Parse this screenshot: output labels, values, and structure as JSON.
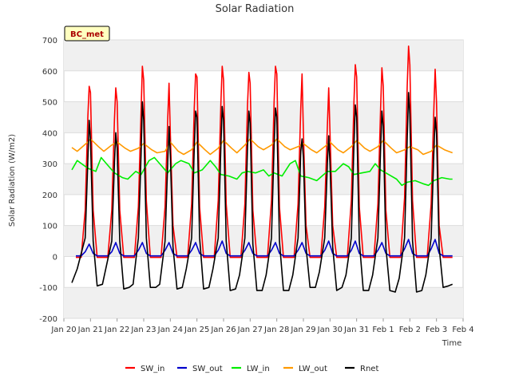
{
  "chart_data": {
    "type": "line",
    "title": "Solar Radiation",
    "xlabel": "Time",
    "ylabel": "Solar Radiation (W/m2)",
    "station_label": "BC_met",
    "ylim": [
      -200,
      700
    ],
    "xlim": [
      0,
      15
    ],
    "y_ticks": [
      -200,
      -100,
      0,
      100,
      200,
      300,
      400,
      500,
      600,
      700
    ],
    "x_ticks": [
      {
        "x": 0,
        "label": "Jan 20"
      },
      {
        "x": 1,
        "label": "Jan 21"
      },
      {
        "x": 2,
        "label": "Jan 22"
      },
      {
        "x": 3,
        "label": "Jan 23"
      },
      {
        "x": 4,
        "label": "Jan 24"
      },
      {
        "x": 5,
        "label": "Jan 25"
      },
      {
        "x": 6,
        "label": "Jan 26"
      },
      {
        "x": 7,
        "label": "Jan 27"
      },
      {
        "x": 8,
        "label": "Jan 28"
      },
      {
        "x": 9,
        "label": "Jan 29"
      },
      {
        "x": 10,
        "label": "Jan 30"
      },
      {
        "x": 11,
        "label": "Jan 31"
      },
      {
        "x": 12,
        "label": "Feb 1"
      },
      {
        "x": 13,
        "label": "Feb 2"
      },
      {
        "x": 14,
        "label": "Feb 3"
      },
      {
        "x": 15,
        "label": "Feb 4"
      }
    ],
    "x_unit": "days since Jan 20 00:00",
    "grid": true,
    "legend_position": "bottom",
    "series": [
      {
        "name": "SW_in",
        "color": "#ff0000",
        "x": [
          0.45,
          0.65,
          0.8,
          0.9,
          0.95,
          1.0,
          1.1,
          1.25,
          1.45,
          1.65,
          1.8,
          1.9,
          1.95,
          2.0,
          2.1,
          2.25,
          2.45,
          2.65,
          2.8,
          2.9,
          2.95,
          3.0,
          3.1,
          3.25,
          3.45,
          3.65,
          3.8,
          3.9,
          3.95,
          4.0,
          4.1,
          4.25,
          4.45,
          4.65,
          4.8,
          4.9,
          4.95,
          5.0,
          5.1,
          5.25,
          5.45,
          5.65,
          5.8,
          5.9,
          5.95,
          6.0,
          6.1,
          6.25,
          6.45,
          6.65,
          6.8,
          6.9,
          6.95,
          7.0,
          7.1,
          7.25,
          7.45,
          7.65,
          7.8,
          7.9,
          7.95,
          8.0,
          8.1,
          8.25,
          8.45,
          8.65,
          8.8,
          8.9,
          8.95,
          9.0,
          9.1,
          9.25,
          9.45,
          9.65,
          9.8,
          9.9,
          9.95,
          10.0,
          10.1,
          10.25,
          10.45,
          10.65,
          10.8,
          10.9,
          10.95,
          11.0,
          11.1,
          11.25,
          11.45,
          11.65,
          11.8,
          11.9,
          11.95,
          12.0,
          12.1,
          12.25,
          12.45,
          12.65,
          12.8,
          12.9,
          12.95,
          13.0,
          13.1,
          13.25,
          13.45,
          13.65,
          13.8,
          13.9,
          13.95,
          14.0,
          14.1,
          14.25,
          14.45,
          14.6
        ],
        "y": [
          -3,
          -3,
          150,
          450,
          550,
          530,
          150,
          -3,
          -3,
          -3,
          150,
          440,
          545,
          500,
          150,
          -3,
          -3,
          -3,
          160,
          470,
          615,
          570,
          180,
          -3,
          -3,
          -3,
          160,
          440,
          560,
          400,
          100,
          -3,
          -3,
          -3,
          170,
          480,
          590,
          580,
          160,
          -3,
          -3,
          -3,
          180,
          500,
          615,
          570,
          170,
          -3,
          -3,
          -3,
          170,
          490,
          595,
          560,
          150,
          -3,
          -3,
          -3,
          180,
          500,
          615,
          590,
          160,
          -3,
          -3,
          -3,
          170,
          480,
          590,
          400,
          100,
          -3,
          -3,
          -3,
          160,
          420,
          545,
          400,
          100,
          -3,
          -3,
          -3,
          180,
          500,
          620,
          580,
          160,
          -3,
          -3,
          -3,
          170,
          480,
          610,
          550,
          150,
          -3,
          -3,
          -3,
          190,
          550,
          680,
          620,
          180,
          -3,
          -3,
          -3,
          170,
          470,
          605,
          500,
          100,
          -3,
          -3,
          -3
        ]
      },
      {
        "name": "SW_out",
        "color": "#0000cc",
        "x": [
          0.45,
          0.65,
          0.8,
          0.95,
          1.1,
          1.25,
          1.45,
          1.65,
          1.8,
          1.95,
          2.1,
          2.25,
          2.45,
          2.65,
          2.8,
          2.95,
          3.1,
          3.25,
          3.45,
          3.65,
          3.8,
          3.95,
          4.1,
          4.25,
          4.45,
          4.65,
          4.8,
          4.95,
          5.1,
          5.25,
          5.45,
          5.65,
          5.8,
          5.95,
          6.1,
          6.25,
          6.45,
          6.65,
          6.8,
          6.95,
          7.1,
          7.25,
          7.45,
          7.65,
          7.8,
          7.95,
          8.1,
          8.25,
          8.45,
          8.65,
          8.8,
          8.95,
          9.1,
          9.25,
          9.45,
          9.65,
          9.8,
          9.95,
          10.1,
          10.25,
          10.45,
          10.65,
          10.8,
          10.95,
          11.1,
          11.25,
          11.45,
          11.65,
          11.8,
          11.95,
          12.1,
          12.25,
          12.45,
          12.65,
          12.8,
          12.95,
          13.1,
          13.25,
          13.45,
          13.65,
          13.8,
          13.95,
          14.1,
          14.25,
          14.45,
          14.6
        ],
        "y": [
          2,
          2,
          15,
          40,
          10,
          2,
          2,
          2,
          15,
          45,
          10,
          2,
          2,
          2,
          20,
          45,
          10,
          2,
          2,
          2,
          20,
          45,
          10,
          2,
          2,
          2,
          20,
          45,
          10,
          2,
          2,
          2,
          20,
          50,
          10,
          2,
          2,
          2,
          20,
          45,
          10,
          2,
          2,
          2,
          20,
          45,
          10,
          2,
          2,
          2,
          20,
          45,
          10,
          2,
          2,
          2,
          20,
          50,
          10,
          2,
          2,
          2,
          20,
          50,
          10,
          2,
          2,
          2,
          20,
          45,
          10,
          2,
          2,
          2,
          25,
          55,
          10,
          2,
          2,
          2,
          25,
          55,
          10,
          2,
          2,
          2
        ]
      },
      {
        "name": "LW_in",
        "color": "#00ee00",
        "x": [
          0.3,
          0.5,
          0.9,
          1.2,
          1.4,
          1.6,
          1.9,
          2.2,
          2.4,
          2.7,
          2.9,
          3.2,
          3.4,
          3.6,
          3.9,
          4.2,
          4.4,
          4.7,
          4.9,
          5.2,
          5.5,
          5.7,
          5.9,
          6.2,
          6.5,
          6.7,
          6.9,
          7.2,
          7.5,
          7.7,
          7.9,
          8.2,
          8.5,
          8.7,
          8.9,
          9.2,
          9.5,
          9.7,
          9.9,
          10.2,
          10.5,
          10.7,
          10.9,
          11.2,
          11.5,
          11.7,
          11.9,
          12.2,
          12.5,
          12.7,
          12.9,
          13.2,
          13.5,
          13.7,
          13.9,
          14.2,
          14.5,
          14.6
        ],
        "y": [
          280,
          310,
          285,
          275,
          320,
          300,
          270,
          255,
          250,
          275,
          265,
          310,
          320,
          300,
          270,
          300,
          310,
          300,
          270,
          280,
          310,
          290,
          265,
          260,
          250,
          270,
          275,
          270,
          280,
          260,
          270,
          260,
          300,
          310,
          260,
          255,
          245,
          260,
          275,
          275,
          300,
          290,
          265,
          270,
          275,
          300,
          280,
          265,
          250,
          230,
          240,
          245,
          235,
          230,
          245,
          255,
          250,
          250
        ]
      },
      {
        "name": "LW_out",
        "color": "#ff9900",
        "x": [
          0.3,
          0.5,
          0.9,
          1.0,
          1.3,
          1.5,
          1.8,
          2.0,
          2.3,
          2.5,
          2.8,
          3.0,
          3.3,
          3.5,
          3.8,
          4.0,
          4.3,
          4.5,
          4.8,
          5.0,
          5.3,
          5.5,
          5.8,
          6.0,
          6.3,
          6.5,
          6.8,
          7.0,
          7.3,
          7.5,
          7.8,
          8.0,
          8.3,
          8.5,
          8.8,
          9.0,
          9.3,
          9.5,
          9.8,
          10.0,
          10.3,
          10.5,
          10.8,
          11.0,
          11.3,
          11.5,
          11.8,
          12.0,
          12.3,
          12.5,
          12.8,
          13.0,
          13.3,
          13.5,
          13.8,
          14.0,
          14.3,
          14.6
        ],
        "y": [
          352,
          340,
          370,
          380,
          355,
          340,
          360,
          370,
          350,
          340,
          350,
          365,
          345,
          335,
          340,
          370,
          340,
          330,
          345,
          370,
          345,
          330,
          350,
          375,
          350,
          335,
          360,
          380,
          355,
          345,
          360,
          380,
          355,
          345,
          355,
          365,
          345,
          335,
          355,
          370,
          345,
          335,
          355,
          375,
          350,
          340,
          355,
          375,
          350,
          335,
          345,
          355,
          345,
          330,
          340,
          360,
          345,
          335
        ]
      },
      {
        "name": "Rnet",
        "color": "#000000",
        "x": [
          0.3,
          0.5,
          0.8,
          0.9,
          0.95,
          1.0,
          1.1,
          1.25,
          1.45,
          1.6,
          1.8,
          1.9,
          1.95,
          2.0,
          2.1,
          2.25,
          2.45,
          2.6,
          2.8,
          2.9,
          2.95,
          3.0,
          3.1,
          3.25,
          3.45,
          3.6,
          3.8,
          3.9,
          3.95,
          4.0,
          4.1,
          4.25,
          4.45,
          4.6,
          4.8,
          4.9,
          4.95,
          5.0,
          5.1,
          5.25,
          5.45,
          5.6,
          5.8,
          5.9,
          5.95,
          6.0,
          6.1,
          6.25,
          6.45,
          6.6,
          6.8,
          6.9,
          6.95,
          7.0,
          7.1,
          7.25,
          7.45,
          7.6,
          7.8,
          7.9,
          7.95,
          8.0,
          8.1,
          8.25,
          8.45,
          8.6,
          8.8,
          8.9,
          8.95,
          9.0,
          9.1,
          9.25,
          9.45,
          9.6,
          9.8,
          9.9,
          9.95,
          10.0,
          10.1,
          10.25,
          10.45,
          10.6,
          10.8,
          10.9,
          10.95,
          11.0,
          11.1,
          11.25,
          11.45,
          11.6,
          11.8,
          11.9,
          11.95,
          12.0,
          12.1,
          12.25,
          12.45,
          12.6,
          12.8,
          12.9,
          12.95,
          13.0,
          13.1,
          13.25,
          13.45,
          13.6,
          13.8,
          13.9,
          13.95,
          14.0,
          14.1,
          14.25,
          14.45,
          14.6
        ],
        "y": [
          -85,
          -40,
          60,
          310,
          440,
          380,
          50,
          -95,
          -90,
          -30,
          50,
          300,
          400,
          350,
          50,
          -105,
          -100,
          -90,
          60,
          330,
          500,
          440,
          60,
          -100,
          -100,
          -90,
          50,
          300,
          420,
          330,
          30,
          -105,
          -100,
          -40,
          60,
          350,
          470,
          450,
          60,
          -105,
          -100,
          -40,
          60,
          360,
          485,
          440,
          50,
          -110,
          -105,
          -60,
          60,
          350,
          470,
          430,
          40,
          -110,
          -110,
          -60,
          60,
          360,
          480,
          450,
          50,
          -110,
          -110,
          -60,
          60,
          340,
          380,
          320,
          30,
          -100,
          -100,
          -50,
          60,
          300,
          390,
          300,
          30,
          -110,
          -100,
          -60,
          60,
          360,
          490,
          450,
          50,
          -110,
          -110,
          -60,
          60,
          350,
          470,
          420,
          30,
          -110,
          -115,
          -70,
          60,
          380,
          530,
          460,
          50,
          -115,
          -110,
          -60,
          60,
          330,
          450,
          400,
          30,
          -100,
          -95,
          -90
        ]
      }
    ]
  }
}
